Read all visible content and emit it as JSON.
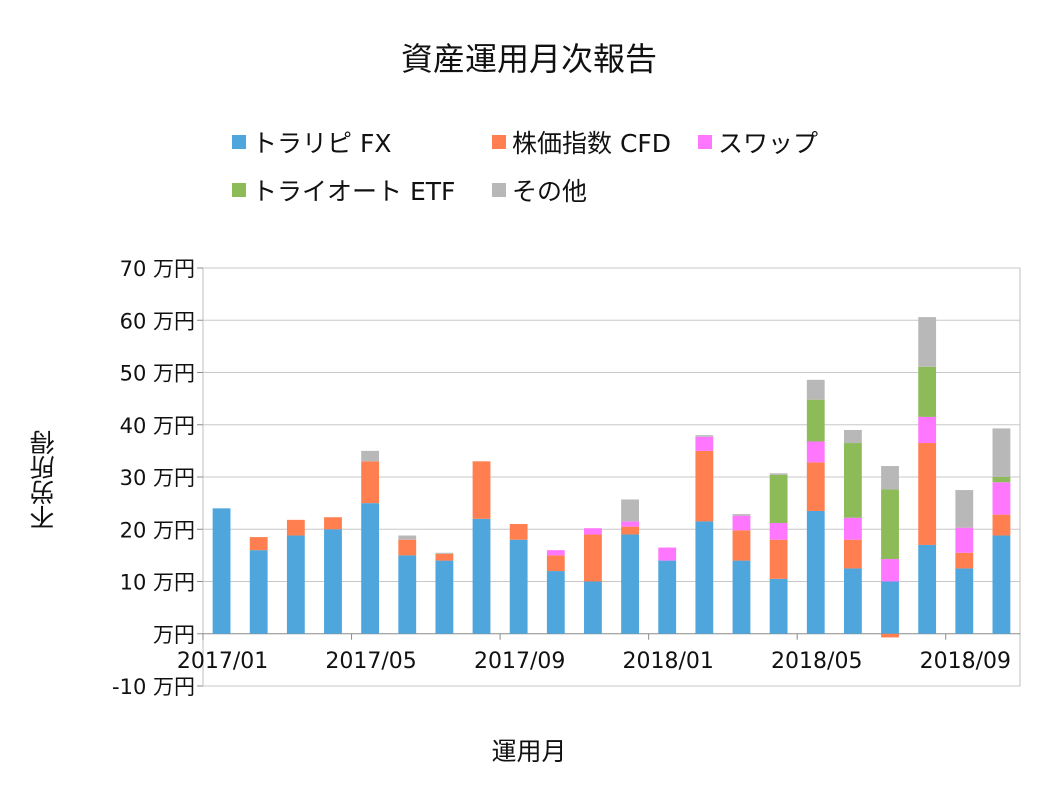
{
  "chart_data": {
    "type": "bar",
    "stacked": true,
    "title": "資産運用月次報告",
    "xlabel": "運用月",
    "ylabel": "不労所得",
    "ylim": [
      -10,
      70
    ],
    "yticks": [
      -10,
      0,
      10,
      20,
      30,
      40,
      50,
      60,
      70
    ],
    "ytick_labels": [
      "-10 万円",
      "万円",
      "10 万円",
      "20 万円",
      "30 万円",
      "40 万円",
      "50 万円",
      "60 万円",
      "70 万円"
    ],
    "xtick_labels": [
      {
        "index": 0,
        "label": "2017/01"
      },
      {
        "index": 4,
        "label": "2017/05"
      },
      {
        "index": 8,
        "label": "2017/09"
      },
      {
        "index": 12,
        "label": "2018/01"
      },
      {
        "index": 16,
        "label": "2018/05"
      },
      {
        "index": 20,
        "label": "2018/09"
      }
    ],
    "categories": [
      "2017/01",
      "2017/02",
      "2017/03",
      "2017/04",
      "2017/05",
      "2017/06",
      "2017/07",
      "2017/08",
      "2017/09",
      "2017/10",
      "2017/11",
      "2017/12",
      "2018/01",
      "2018/02",
      "2018/03",
      "2018/04",
      "2018/05",
      "2018/06",
      "2018/07",
      "2018/08",
      "2018/09",
      "2018/10"
    ],
    "grid": true,
    "legend_position": "top",
    "series": [
      {
        "name": "トラリピ FX",
        "color": "#4EA6DC",
        "values": [
          24,
          16,
          18.8,
          20,
          25,
          15,
          14,
          22,
          18,
          12,
          10,
          19,
          14,
          21.5,
          14,
          10.5,
          23.5,
          12.5,
          10,
          17,
          12.5,
          18.8
        ]
      },
      {
        "name": "株価指数 CFD",
        "color": "#FF7F50",
        "values": [
          0,
          2.5,
          3,
          2.3,
          8,
          3,
          1.3,
          11,
          3,
          3,
          9,
          1.5,
          0,
          13.5,
          5.8,
          7.5,
          9.3,
          5.5,
          -0.7,
          19.5,
          3,
          4
        ]
      },
      {
        "name": "スワップ",
        "color": "#FF77FF",
        "values": [
          0,
          0,
          0,
          0,
          0,
          0,
          0,
          0,
          0,
          1,
          1.2,
          1,
          2.5,
          2.7,
          2.8,
          3.2,
          4,
          4.2,
          4.3,
          5,
          4.8,
          6.2
        ]
      },
      {
        "name": "トライオート ETF",
        "color": "#8CBB58",
        "values": [
          0,
          0,
          0,
          0,
          0,
          0,
          0,
          0,
          0,
          0,
          0,
          0,
          0,
          0,
          0,
          9.2,
          8,
          14.3,
          13.3,
          9.6,
          0,
          1
        ]
      },
      {
        "name": "その他",
        "color": "#B8B8B8",
        "values": [
          0,
          0,
          0,
          0,
          2,
          0.8,
          0.2,
          0,
          0,
          0,
          0,
          4.2,
          0,
          0.3,
          0.3,
          0.3,
          3.8,
          2.5,
          4.5,
          9.5,
          7.2,
          9.3
        ]
      }
    ]
  }
}
